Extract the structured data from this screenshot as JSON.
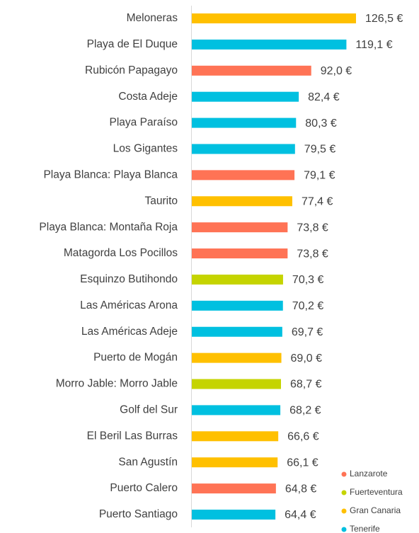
{
  "chart_data": {
    "type": "bar",
    "orientation": "horizontal",
    "categories": [
      "Meloneras",
      "Playa de El Duque",
      "Rubicón Papagayo",
      "Costa Adeje",
      "Playa Paraíso",
      "Los Gigantes",
      "Playa Blanca: Playa Blanca",
      "Taurito",
      "Playa Blanca: Montaña Roja",
      "Matagorda Los Pocillos",
      "Esquinzo Butihondo",
      "Las Américas Arona",
      "Las Américas Adeje",
      "Puerto de Mogán",
      "Morro Jable: Morro Jable",
      "Golf del Sur",
      "El Beril Las Burras",
      "San Agustín",
      "Puerto Calero",
      "Puerto Santiago"
    ],
    "values": [
      126.5,
      119.1,
      92.0,
      82.4,
      80.3,
      79.5,
      79.1,
      77.4,
      73.8,
      73.8,
      70.3,
      70.2,
      69.7,
      69.0,
      68.7,
      68.2,
      66.6,
      66.1,
      64.8,
      64.4
    ],
    "value_labels": [
      "126,5 €",
      "119,1 €",
      "92,0 €",
      "82,4 €",
      "80,3 €",
      "79,5 €",
      "79,1 €",
      "77,4 €",
      "73,8 €",
      "73,8 €",
      "70,3 €",
      "70,2 €",
      "69,7 €",
      "69,0 €",
      "68,7 €",
      "68,2 €",
      "66,6 €",
      "66,1 €",
      "64,8 €",
      "64,4 €"
    ],
    "colors": [
      "#ffc000",
      "#00c0e0",
      "#ff7355",
      "#00c0e0",
      "#00c0e0",
      "#00c0e0",
      "#ff7355",
      "#ffc000",
      "#ff7355",
      "#ff7355",
      "#c5d400",
      "#00c0e0",
      "#00c0e0",
      "#ffc000",
      "#c5d400",
      "#00c0e0",
      "#ffc000",
      "#ffc000",
      "#ff7355",
      "#00c0e0"
    ],
    "legend": [
      {
        "name": "Lanzarote",
        "color": "#ff7355"
      },
      {
        "name": "Fuerteventura",
        "color": "#c5d400"
      },
      {
        "name": "Gran Canaria",
        "color": "#ffc000"
      },
      {
        "name": "Tenerife",
        "color": "#00c0e0"
      }
    ],
    "legend_position": "lower right"
  }
}
